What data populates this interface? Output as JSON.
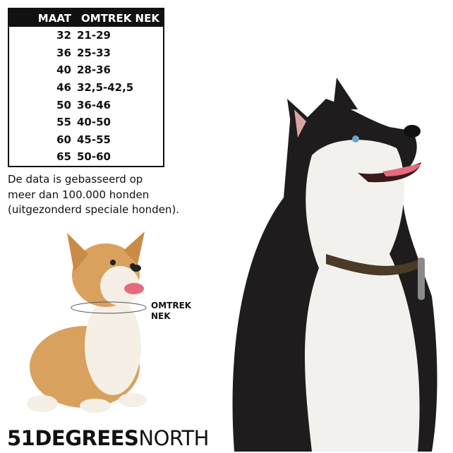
{
  "table": {
    "headers": [
      "MAAT",
      "OMTREK NEK"
    ],
    "rows": [
      [
        "32",
        "21-29"
      ],
      [
        "36",
        "25-33"
      ],
      [
        "40",
        "28-36"
      ],
      [
        "46",
        "32,5-42,5"
      ],
      [
        "50",
        "36-46"
      ],
      [
        "55",
        "40-50"
      ],
      [
        "60",
        "45-55"
      ],
      [
        "65",
        "50-60"
      ]
    ]
  },
  "note": [
    "De data is gebasseerd op",
    "meer dan 100.000 honden",
    "(uitgezonderd speciale honden)."
  ],
  "neck_label": [
    "OMTREK",
    "NEK"
  ],
  "logo": {
    "bold": "51DEGREES",
    "light": "NORTH"
  },
  "colors": {
    "table_header": "#111111",
    "corgi": "#d9a15e",
    "husky_dark": "#1e1c1c",
    "collar": "#4a3a26"
  }
}
